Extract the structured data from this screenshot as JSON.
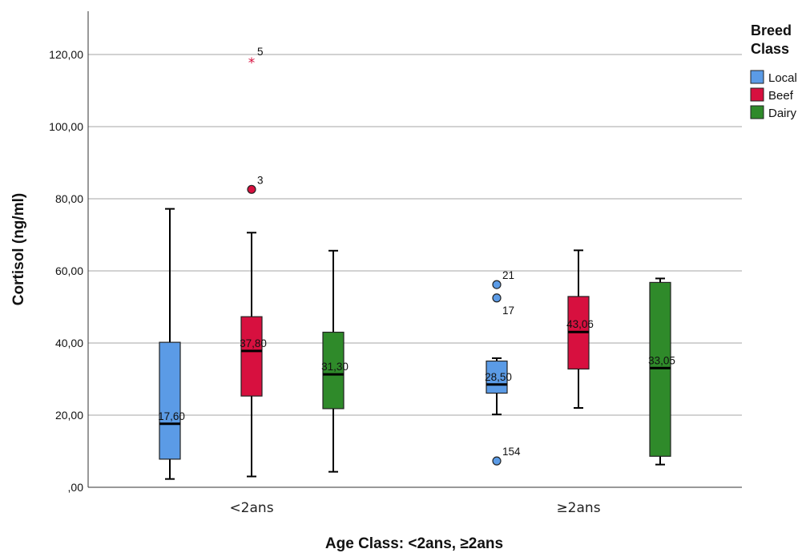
{
  "chart_data": {
    "type": "boxplot",
    "ylabel": "Cortisol (ng/ml)",
    "xlabel": "Age Class: <2ans, ≥2ans",
    "ylim": [
      0,
      132
    ],
    "yticks": [
      {
        "value": 0,
        "label": ",00"
      },
      {
        "value": 20,
        "label": "20,00"
      },
      {
        "value": 40,
        "label": "40,00"
      },
      {
        "value": 60,
        "label": "60,00"
      },
      {
        "value": 80,
        "label": "80,00"
      },
      {
        "value": 100,
        "label": "100,00"
      },
      {
        "value": 120,
        "label": "120,00"
      }
    ],
    "grid": true,
    "categories": [
      "<2ans",
      "≥2ans"
    ],
    "legend": {
      "title_lines": [
        "Breed",
        "Class"
      ],
      "position": "right",
      "items": [
        {
          "name": "Local",
          "color": "#5b9be6"
        },
        {
          "name": "Beef",
          "color": "#d7103f"
        },
        {
          "name": "Dairy",
          "color": "#2f8a2a"
        }
      ]
    },
    "series": [
      {
        "name": "Local",
        "color": "#5b9be6",
        "boxes": [
          {
            "min": 2.3,
            "q1": 7.8,
            "median": 17.6,
            "q3": 40.2,
            "max": 77.2,
            "median_label": "17,60",
            "outliers": []
          },
          {
            "min": 20.2,
            "q1": 26.1,
            "median": 28.5,
            "q3": 35.0,
            "max": 35.8,
            "median_label": "28,50",
            "outliers": [
              {
                "value": 56.2,
                "label": "21",
                "marker": "circle"
              },
              {
                "value": 52.5,
                "label": "17",
                "marker": "circle"
              },
              {
                "value": 7.3,
                "label": "154",
                "marker": "circle"
              }
            ]
          }
        ]
      },
      {
        "name": "Beef",
        "color": "#d7103f",
        "boxes": [
          {
            "min": 3.0,
            "q1": 25.3,
            "median": 37.8,
            "q3": 47.3,
            "max": 70.6,
            "median_label": "37,80",
            "outliers": [
              {
                "value": 82.6,
                "label": "3",
                "marker": "circle"
              },
              {
                "value": 118.2,
                "label": "5",
                "marker": "star"
              }
            ]
          },
          {
            "min": 22.0,
            "q1": 32.8,
            "median": 43.06,
            "q3": 52.9,
            "max": 65.7,
            "median_label": "43,06",
            "outliers": []
          }
        ]
      },
      {
        "name": "Dairy",
        "color": "#2f8a2a",
        "boxes": [
          {
            "min": 4.3,
            "q1": 21.8,
            "median": 31.3,
            "q3": 43.0,
            "max": 65.6,
            "median_label": "31,30",
            "outliers": []
          },
          {
            "min": 6.3,
            "q1": 8.6,
            "median": 33.05,
            "q3": 56.8,
            "max": 57.9,
            "median_label": "33,05",
            "outliers": []
          }
        ]
      }
    ]
  }
}
